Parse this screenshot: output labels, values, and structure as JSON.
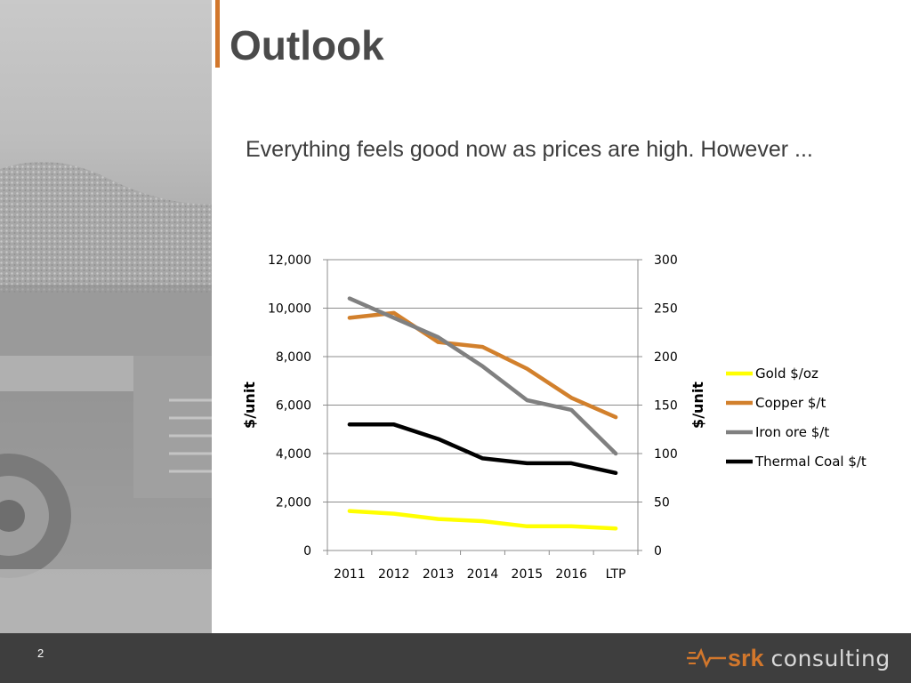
{
  "slide": {
    "title": "Outlook",
    "subtitle": "Everything feels good now as prices are high.  However ...",
    "page_number": "2",
    "logo_brand": "srk",
    "logo_word": "consulting",
    "colors": {
      "accent": "#d2772c",
      "footer": "#3e3e3e",
      "title": "#4a4a4a"
    },
    "background_image": "mining-haul-truck-photo"
  },
  "chart_data": {
    "type": "line",
    "categories": [
      "2011",
      "2012",
      "2013",
      "2014",
      "2015",
      "2016",
      "LTP"
    ],
    "y_left": {
      "label": "$/unit",
      "ylim": [
        0,
        12000
      ],
      "ticks": [
        "0",
        "2,000",
        "4,000",
        "6,000",
        "8,000",
        "10,000",
        "12,000"
      ],
      "tick_values": [
        0,
        2000,
        4000,
        6000,
        8000,
        10000,
        12000
      ]
    },
    "y_right": {
      "label": "$/unit",
      "ylim": [
        0,
        300
      ],
      "ticks": [
        "0",
        "50",
        "100",
        "150",
        "200",
        "250",
        "300"
      ],
      "tick_values": [
        0,
        50,
        100,
        150,
        200,
        250,
        300
      ]
    },
    "grid": true,
    "legend": "right",
    "series": [
      {
        "name": "Gold $/oz",
        "color": "#ffff00",
        "axis": "left",
        "values": [
          1630,
          1520,
          1300,
          1210,
          1000,
          1000,
          910
        ]
      },
      {
        "name": "Copper $/t",
        "color": "#d2802c",
        "axis": "left",
        "values": [
          9600,
          9800,
          8600,
          8400,
          7500,
          6300,
          5500
        ]
      },
      {
        "name": "Iron ore $/t",
        "color": "#808080",
        "axis": "right",
        "values": [
          260,
          240,
          220,
          190,
          155,
          145,
          100
        ]
      },
      {
        "name": "Thermal Coal $/t",
        "color": "#000000",
        "axis": "right",
        "values": [
          130,
          130,
          115,
          95,
          90,
          90,
          80
        ]
      }
    ]
  }
}
